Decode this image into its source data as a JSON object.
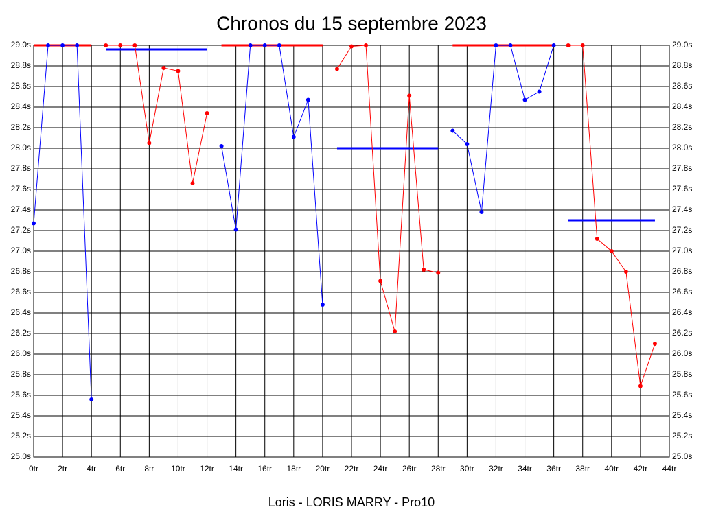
{
  "chart_data": {
    "type": "line",
    "title": "Chronos du 15 septembre 2023",
    "x_label": "Loris - LORIS MARRY - Pro10",
    "xlim": [
      0,
      44
    ],
    "ylim": [
      25,
      29
    ],
    "grid": true,
    "xticks": [
      {
        "value": 0,
        "label": "0tr"
      },
      {
        "value": 2,
        "label": "2tr"
      },
      {
        "value": 4,
        "label": "4tr"
      },
      {
        "value": 6,
        "label": "6tr"
      },
      {
        "value": 8,
        "label": "8tr"
      },
      {
        "value": 10,
        "label": "10tr"
      },
      {
        "value": 12,
        "label": "12tr"
      },
      {
        "value": 14,
        "label": "14tr"
      },
      {
        "value": 16,
        "label": "16tr"
      },
      {
        "value": 18,
        "label": "18tr"
      },
      {
        "value": 20,
        "label": "20tr"
      },
      {
        "value": 22,
        "label": "22tr"
      },
      {
        "value": 24,
        "label": "24tr"
      },
      {
        "value": 26,
        "label": "26tr"
      },
      {
        "value": 28,
        "label": "28tr"
      },
      {
        "value": 30,
        "label": "30tr"
      },
      {
        "value": 32,
        "label": "32tr"
      },
      {
        "value": 34,
        "label": "34tr"
      },
      {
        "value": 36,
        "label": "36tr"
      },
      {
        "value": 38,
        "label": "38tr"
      },
      {
        "value": 40,
        "label": "40tr"
      },
      {
        "value": 42,
        "label": "42tr"
      },
      {
        "value": 44,
        "label": "44tr"
      }
    ],
    "yticks": [
      {
        "value": 25.0,
        "label": "25.0s"
      },
      {
        "value": 25.2,
        "label": "25.2s"
      },
      {
        "value": 25.4,
        "label": "25.4s"
      },
      {
        "value": 25.6,
        "label": "25.6s"
      },
      {
        "value": 25.8,
        "label": "25.8s"
      },
      {
        "value": 26.0,
        "label": "26.0s"
      },
      {
        "value": 26.2,
        "label": "26.2s"
      },
      {
        "value": 26.4,
        "label": "26.4s"
      },
      {
        "value": 26.6,
        "label": "26.6s"
      },
      {
        "value": 26.8,
        "label": "26.8s"
      },
      {
        "value": 27.0,
        "label": "27.0s"
      },
      {
        "value": 27.2,
        "label": "27.2s"
      },
      {
        "value": 27.4,
        "label": "27.4s"
      },
      {
        "value": 27.6,
        "label": "27.6s"
      },
      {
        "value": 27.8,
        "label": "27.8s"
      },
      {
        "value": 28.0,
        "label": "28.0s"
      },
      {
        "value": 28.2,
        "label": "28.2s"
      },
      {
        "value": 28.4,
        "label": "28.4s"
      },
      {
        "value": 28.6,
        "label": "28.6s"
      },
      {
        "value": 28.8,
        "label": "28.8s"
      },
      {
        "value": 29.0,
        "label": "29.0s"
      }
    ],
    "series": [
      {
        "color": "#0000ff",
        "x": [
          0,
          1,
          2,
          3,
          4
        ],
        "values": [
          27.27,
          29.0,
          29.0,
          29.0,
          25.56
        ]
      },
      {
        "color": "#ff0000",
        "x": [
          5,
          6,
          7,
          8,
          9,
          10,
          11,
          12
        ],
        "values": [
          29.0,
          29.0,
          29.0,
          28.05,
          28.78,
          28.75,
          27.66,
          28.34
        ]
      },
      {
        "color": "#0000ff",
        "x": [
          13,
          14,
          15,
          16,
          17,
          18,
          19,
          20
        ],
        "values": [
          28.02,
          27.21,
          29.0,
          29.0,
          29.0,
          28.11,
          28.47,
          26.48
        ]
      },
      {
        "color": "#ff0000",
        "x": [
          21,
          22,
          23,
          24,
          25,
          26,
          27,
          28
        ],
        "values": [
          28.77,
          28.99,
          29.0,
          26.71,
          26.22,
          28.51,
          26.82,
          26.79
        ]
      },
      {
        "color": "#0000ff",
        "x": [
          29,
          30,
          31,
          32,
          33,
          34,
          35,
          36
        ],
        "values": [
          28.17,
          28.04,
          27.38,
          29.0,
          29.0,
          28.47,
          28.55,
          29.0
        ]
      },
      {
        "color": "#ff0000",
        "x": [
          37,
          38,
          39,
          40,
          41,
          42,
          43
        ],
        "values": [
          29.0,
          29.0,
          27.12,
          27.0,
          26.8,
          25.69,
          26.1
        ]
      }
    ],
    "reference_lines": [
      {
        "color": "#ff0000",
        "x": [
          0,
          4
        ],
        "value": 29.0
      },
      {
        "color": "#0000ff",
        "x": [
          5,
          12
        ],
        "value": 28.96
      },
      {
        "color": "#ff0000",
        "x": [
          13,
          20
        ],
        "value": 29.0
      },
      {
        "color": "#0000ff",
        "x": [
          21,
          28
        ],
        "value": 28.0
      },
      {
        "color": "#ff0000",
        "x": [
          29,
          36
        ],
        "value": 29.0
      },
      {
        "color": "#0000ff",
        "x": [
          37,
          43
        ],
        "value": 27.3
      }
    ]
  }
}
